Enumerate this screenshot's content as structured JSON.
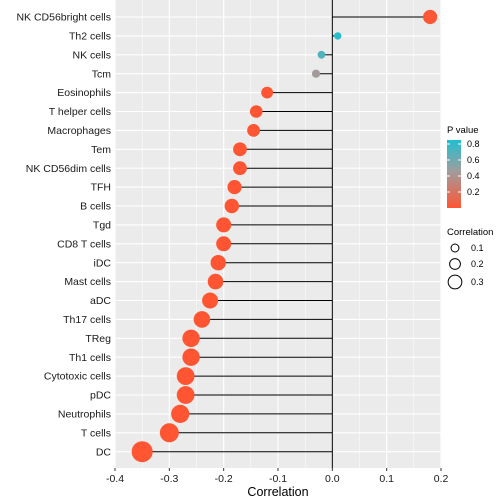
{
  "chart_data": {
    "type": "lollipop",
    "xlabel": "Correlation",
    "ylabel": "",
    "xlim": [
      -0.4,
      0.2
    ],
    "xticks": [
      -0.4,
      -0.3,
      -0.2,
      -0.1,
      0.0,
      0.1,
      0.2
    ],
    "xtick_labels": [
      "-0.4",
      "-0.3",
      "-0.2",
      "-0.1",
      "0.0",
      "0.1",
      "0.2"
    ],
    "grid": true,
    "background": "#ebebeb",
    "categories": [
      "NK CD56bright cells",
      "Th2 cells",
      "NK cells",
      "Tcm",
      "Eosinophils",
      "T helper cells",
      "Macrophages",
      "Tem",
      "NK CD56dim cells",
      "TFH",
      "B cells",
      "Tgd",
      "CD8 T cells",
      "iDC",
      "Mast cells",
      "aDC",
      "Th17 cells",
      "TReg",
      "Th1 cells",
      "Cytotoxic cells",
      "pDC",
      "Neutrophils",
      "T cells",
      "DC"
    ],
    "values": [
      0.18,
      0.01,
      -0.02,
      -0.03,
      -0.12,
      -0.14,
      -0.145,
      -0.17,
      -0.17,
      -0.18,
      -0.185,
      -0.2,
      -0.2,
      -0.21,
      -0.215,
      -0.225,
      -0.24,
      -0.26,
      -0.26,
      -0.27,
      -0.27,
      -0.28,
      -0.3,
      -0.35
    ],
    "p_values": [
      0.01,
      0.82,
      0.7,
      0.45,
      0.005,
      0.005,
      0.005,
      0.002,
      0.002,
      0.002,
      0.002,
      0.001,
      0.001,
      0.001,
      0.001,
      0.001,
      0.0005,
      0.0002,
      0.0002,
      0.0002,
      0.0002,
      0.0001,
      5e-05,
      1e-05
    ],
    "point_size_legend": {
      "title": "Correlation",
      "values": [
        0.1,
        0.2,
        0.3
      ],
      "labels": [
        "0.1",
        "0.2",
        "0.3"
      ]
    },
    "color_legend": {
      "title": "P value",
      "ticks": [
        0.2,
        0.4,
        0.6,
        0.8
      ],
      "labels": [
        "0.2",
        "0.4",
        "0.6",
        "0.8"
      ],
      "range": [
        0,
        0.85
      ],
      "color_low": "#ff5533",
      "color_mid": "#9e9e9e",
      "color_high": "#1fbfcf"
    },
    "legend_position": "right",
    "stem_color": "#000000",
    "zero_line_color": "#000000"
  }
}
